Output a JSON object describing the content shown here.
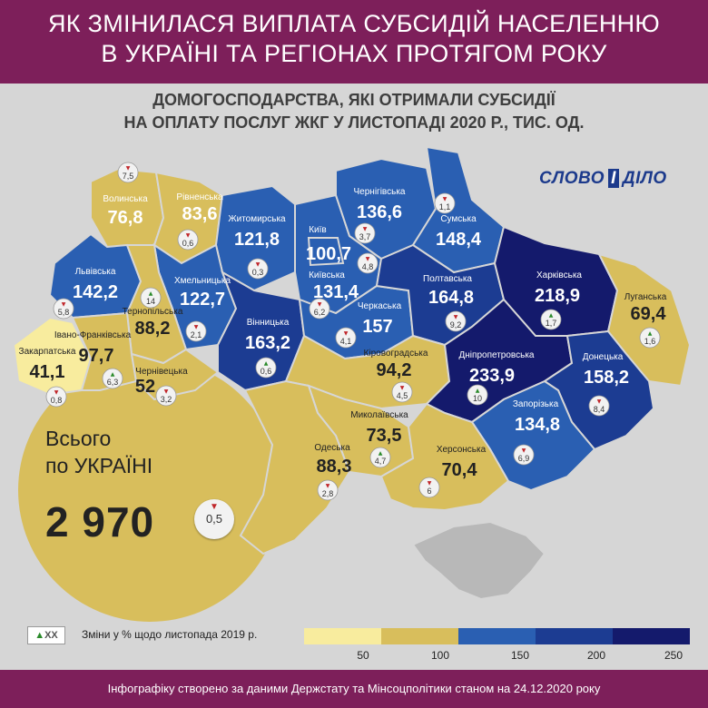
{
  "header": {
    "title_line1": "ЯК ЗМІНИЛАСЯ ВИПЛАТА СУБСИДІЙ НАСЕЛЕННЮ",
    "title_line2": "В УКРАЇНІ ТА РЕГІОНАХ ПРОТЯГОМ РОКУ"
  },
  "subtitle": {
    "line1": "ДОМОГОСПОДАРСТВА, ЯКІ ОТРИМАЛИ СУБСИДІЇ",
    "line2": "НА ОПЛАТУ ПОСЛУГ ЖКГ У ЛИСТОПАДІ 2020 Р., ТИС. ОД."
  },
  "logo": {
    "part1": "СЛОВО",
    "part2": "І",
    "part3": "ДІЛО"
  },
  "total": {
    "label1": "Всього",
    "label2": "по УКРАЇНІ",
    "value": "2 970",
    "change": "0,5",
    "direction": "down"
  },
  "legend": {
    "badge": "XX",
    "note": "Зміни у % щодо листопада 2019 р.",
    "thresholds": [
      "50",
      "100",
      "150",
      "200",
      "250"
    ],
    "colors": [
      "#f8ec9e",
      "#d8be5c",
      "#2a5fb2",
      "#1c3c92",
      "#141a6c"
    ]
  },
  "footer": "Інфографіку створено за даними Держстату та Мінсоцполітики станом на 24.12.2020 року",
  "colors": {
    "header": "#7d1f5a",
    "yellow_light": "#f8ec9e",
    "yellow": "#d8be5c",
    "blue": "#2a5fb2",
    "blue_dark": "#1c3c92",
    "navy": "#141a6c"
  },
  "regions": [
    {
      "id": "volynska",
      "name": "Волинська",
      "value": "76,8",
      "change": "7,5",
      "direction": "down"
    },
    {
      "id": "rivnenska",
      "name": "Рівненська",
      "value": "83,6",
      "change": "0,6",
      "direction": "down"
    },
    {
      "id": "zhytomyrska",
      "name": "Житомирська",
      "value": "121,8",
      "change": "0,3",
      "direction": "down"
    },
    {
      "id": "chernihivska",
      "name": "Чернігівська",
      "value": "136,6",
      "change": "3,7",
      "direction": "down"
    },
    {
      "id": "sumska",
      "name": "Сумська",
      "value": "148,4",
      "change": "1,1",
      "direction": "down"
    },
    {
      "id": "kyiv",
      "name": "Київ",
      "value": "100,7",
      "change": "4,8",
      "direction": "down"
    },
    {
      "id": "kyivska",
      "name": "Київська",
      "value": "131,4",
      "change": "6,2",
      "direction": "down"
    },
    {
      "id": "lvivska",
      "name": "Львівська",
      "value": "142,2",
      "change": "5,8",
      "direction": "down"
    },
    {
      "id": "khmelnytska",
      "name": "Хмельницька",
      "value": "122,7",
      "change": "2,1",
      "direction": "down"
    },
    {
      "id": "ternopilska",
      "name": "Тернопільська",
      "value": "88,2",
      "change": "14",
      "direction": "up"
    },
    {
      "id": "vinnytska",
      "name": "Вінницька",
      "value": "163,2",
      "change": "0,6",
      "direction": "up"
    },
    {
      "id": "cherkaska",
      "name": "Черкаська",
      "value": "157",
      "change": "4,1",
      "direction": "down"
    },
    {
      "id": "poltavska",
      "name": "Полтавська",
      "value": "164,8",
      "change": "9,2",
      "direction": "down"
    },
    {
      "id": "kharkivska",
      "name": "Харківська",
      "value": "218,9",
      "change": "1,7",
      "direction": "up"
    },
    {
      "id": "luhanska",
      "name": "Луганська",
      "value": "69,4",
      "change": "1,6",
      "direction": "up"
    },
    {
      "id": "zakarpatska",
      "name": "Закарпатська",
      "value": "41,1",
      "change": "0,8",
      "direction": "down"
    },
    {
      "id": "ivano_frankivska",
      "name": "Івано-Франківська",
      "value": "97,7",
      "change": "6,3",
      "direction": "up"
    },
    {
      "id": "chernivetska",
      "name": "Чернівецька",
      "value": "52",
      "change": "3,2",
      "direction": "down"
    },
    {
      "id": "kirovohradska",
      "name": "Кіровоградська",
      "value": "94,2",
      "change": "4,5",
      "direction": "down"
    },
    {
      "id": "dnipropetrovska",
      "name": "Дніпропетровська",
      "value": "233,9",
      "change": "10",
      "direction": "up"
    },
    {
      "id": "donetska",
      "name": "Донецька",
      "value": "158,2",
      "change": "8,4",
      "direction": "down"
    },
    {
      "id": "zaporizka",
      "name": "Запорізька",
      "value": "134,8",
      "change": "6,9",
      "direction": "down"
    },
    {
      "id": "mykolaivska",
      "name": "Миколаївська",
      "value": "73,5",
      "change": "4,7",
      "direction": "up"
    },
    {
      "id": "odeska",
      "name": "Одеська",
      "value": "88,3",
      "change": "2,8",
      "direction": "down"
    },
    {
      "id": "khersonska",
      "name": "Херсонська",
      "value": "70,4",
      "change": "6",
      "direction": "down"
    }
  ]
}
